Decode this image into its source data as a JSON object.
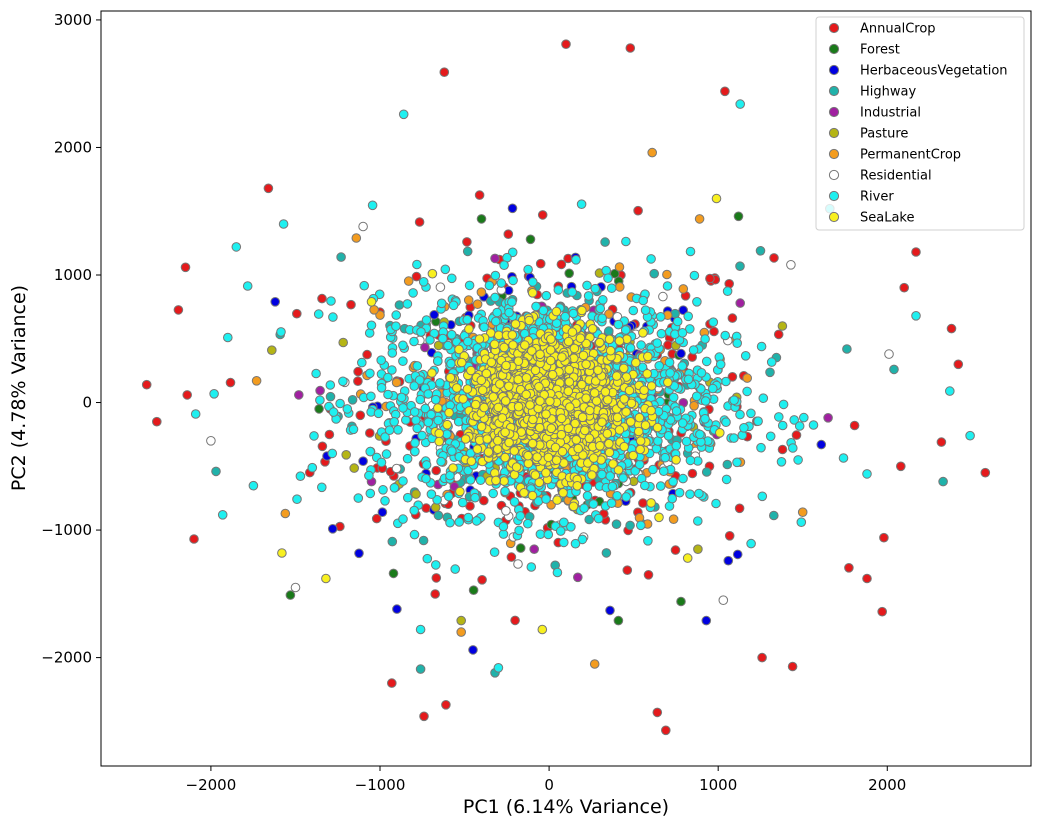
{
  "chart_data": {
    "type": "scatter",
    "title": "",
    "xlabel": "PC1 (6.14% Variance)",
    "ylabel": "PC2 (4.78% Variance)",
    "xlim": [
      -2650,
      2850
    ],
    "ylim": [
      -2850,
      3070
    ],
    "xticks": [
      -2000,
      -1000,
      0,
      1000,
      2000
    ],
    "yticks": [
      -2000,
      -1000,
      0,
      1000,
      2000,
      3000
    ],
    "xtick_labels": [
      "−2000",
      "−1000",
      "0",
      "1000",
      "2000"
    ],
    "ytick_labels": [
      "−2000",
      "−1000",
      "0",
      "1000",
      "2000",
      "3000"
    ],
    "grid": false,
    "legend_position": "top-right",
    "marker_edge_color": "#777777",
    "series": [
      {
        "name": "AnnualCrop",
        "color": "#e41a1c",
        "count": 260,
        "spread": [
          1050,
          1050
        ],
        "points": [
          [
            -2380,
            140
          ],
          [
            -2320,
            -150
          ],
          [
            -2150,
            1060
          ],
          [
            -2100,
            -1070
          ],
          [
            -2140,
            60
          ],
          [
            2580,
            -550
          ],
          [
            2380,
            580
          ],
          [
            2420,
            300
          ],
          [
            1980,
            -1060
          ],
          [
            1970,
            -1640
          ],
          [
            2170,
            1180
          ],
          [
            2100,
            900
          ],
          [
            2080,
            -500
          ],
          [
            100,
            2810
          ],
          [
            480,
            2780
          ],
          [
            -620,
            2590
          ],
          [
            690,
            -2570
          ],
          [
            640,
            -2430
          ],
          [
            -610,
            -2370
          ],
          [
            -930,
            -2200
          ],
          [
            -740,
            -2460
          ],
          [
            1440,
            -2070
          ],
          [
            1260,
            -2000
          ],
          [
            2320,
            -310
          ],
          [
            -1660,
            1680
          ],
          [
            1040,
            2440
          ],
          [
            1880,
            -1380
          ]
        ]
      },
      {
        "name": "Forest",
        "color": "#1a7a1a",
        "count": 50,
        "spread": [
          700,
          700
        ],
        "points": [
          [
            -1530,
            -1510
          ],
          [
            -400,
            1440
          ],
          [
            780,
            -1560
          ],
          [
            -920,
            -1340
          ],
          [
            1120,
            1460
          ],
          [
            -1360,
            -50
          ],
          [
            410,
            -1710
          ],
          [
            -110,
            1280
          ]
        ]
      },
      {
        "name": "HerbaceousVegetation",
        "color": "#0000e0",
        "count": 140,
        "spread": [
          800,
          750
        ],
        "points": [
          [
            -1620,
            790
          ],
          [
            -900,
            -1620
          ],
          [
            -450,
            -1940
          ],
          [
            930,
            -1710
          ],
          [
            1610,
            -330
          ],
          [
            -1280,
            -990
          ],
          [
            1060,
            -1240
          ],
          [
            360,
            -1630
          ]
        ]
      },
      {
        "name": "Highway",
        "color": "#20b2aa",
        "count": 170,
        "spread": [
          900,
          850
        ],
        "points": [
          [
            -760,
            -2090
          ],
          [
            2330,
            -620
          ],
          [
            2040,
            260
          ],
          [
            -1970,
            -540
          ],
          [
            1250,
            1190
          ],
          [
            -1230,
            1140
          ]
        ]
      },
      {
        "name": "Industrial",
        "color": "#a020a0",
        "count": 70,
        "spread": [
          750,
          650
        ],
        "points": [
          [
            -1480,
            60
          ],
          [
            1650,
            -120
          ],
          [
            -1050,
            -620
          ],
          [
            1130,
            780
          ],
          [
            170,
            -1370
          ],
          [
            -320,
            1130
          ]
        ]
      },
      {
        "name": "Pasture",
        "color": "#b5b515",
        "count": 70,
        "spread": [
          750,
          700
        ],
        "points": [
          [
            -1200,
            -410
          ],
          [
            1380,
            600
          ],
          [
            -520,
            -1710
          ],
          [
            880,
            -1150
          ],
          [
            -1640,
            410
          ]
        ]
      },
      {
        "name": "PermanentCrop",
        "color": "#f39c1f",
        "count": 150,
        "spread": [
          800,
          800
        ],
        "points": [
          [
            270,
            -2050
          ],
          [
            -520,
            -1800
          ],
          [
            890,
            1440
          ],
          [
            -1140,
            1290
          ],
          [
            1500,
            -860
          ],
          [
            -1560,
            -870
          ],
          [
            610,
            1960
          ],
          [
            -1730,
            170
          ]
        ]
      },
      {
        "name": "Residential",
        "color": "#ffffff",
        "count": 120,
        "spread": [
          650,
          650
        ],
        "points": [
          [
            -1500,
            -1450
          ],
          [
            1430,
            1080
          ],
          [
            -1100,
            1380
          ],
          [
            1030,
            -1550
          ],
          [
            -2000,
            -300
          ],
          [
            2010,
            380
          ]
        ]
      },
      {
        "name": "River",
        "color": "#1ef0f0",
        "count": 1500,
        "spread": [
          850,
          700
        ],
        "points": [
          [
            -1900,
            510
          ],
          [
            -2090,
            -90
          ],
          [
            2490,
            -260
          ],
          [
            2370,
            90
          ],
          [
            -300,
            -2080
          ],
          [
            -860,
            2260
          ],
          [
            1130,
            2340
          ],
          [
            -1570,
            1400
          ],
          [
            1660,
            1520
          ],
          [
            -760,
            -1780
          ],
          [
            -1850,
            1220
          ],
          [
            1880,
            -560
          ],
          [
            -1930,
            -880
          ],
          [
            2170,
            680
          ]
        ]
      },
      {
        "name": "SeaLake",
        "color": "#f8f020",
        "count": 1400,
        "spread": [
          380,
          420
        ],
        "points": [
          [
            -1320,
            -1380
          ],
          [
            990,
            1600
          ],
          [
            -1580,
            -1180
          ],
          [
            -40,
            -1780
          ],
          [
            820,
            -1220
          ],
          [
            -1050,
            790
          ],
          [
            650,
            -900
          ],
          [
            -690,
            1010
          ]
        ]
      }
    ]
  }
}
